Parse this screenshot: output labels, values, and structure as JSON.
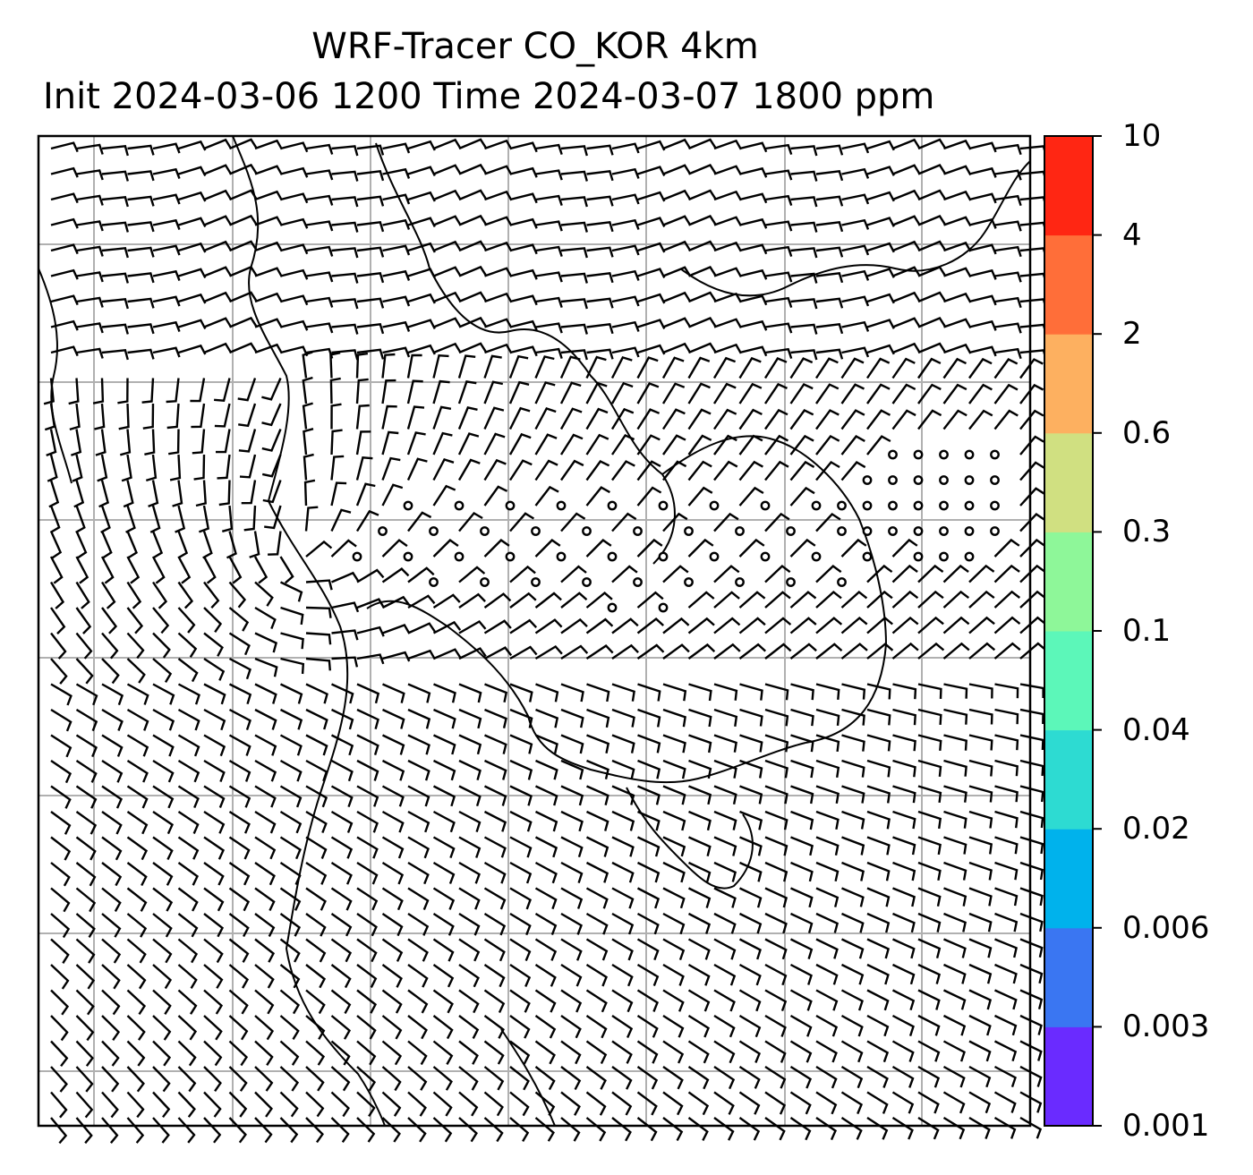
{
  "title_line1": "WRF-Tracer CO_KOR 4km",
  "title_line2": "Init 2024-03-06 1200 Time 2024-03-07 1800 ppm",
  "colorbar": {
    "levels": [
      "0.001",
      "0.003",
      "0.006",
      "0.02",
      "0.04",
      "0.1",
      "0.3",
      "0.6",
      "2",
      "4",
      "10"
    ],
    "colors": [
      "#6a2bff",
      "#3a76f2",
      "#00b2ec",
      "#2ddbd2",
      "#5cf7b9",
      "#8ef799",
      "#d0e081",
      "#fdb060",
      "#ff6e39",
      "#ff2613"
    ]
  },
  "map": {
    "frame_color": "#000000",
    "grid_color": "#b0b0b0",
    "coastline_color": "#000000",
    "wind_barb_color": "#000000",
    "grid_columns": 8,
    "grid_rows": 8
  }
}
